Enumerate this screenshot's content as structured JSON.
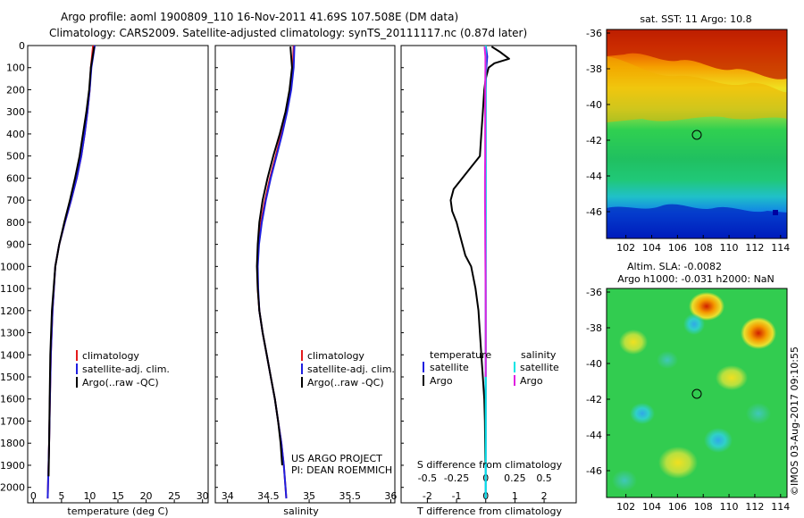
{
  "title": {
    "line1": "Argo profile: aoml 1900809_110 16-Nov-2011 41.69S 107.508E (DM data)",
    "line2": "Climatology: CARS2009. Satellite-adjusted climatology: synTS_20111117.nc (0.87d later)"
  },
  "colors": {
    "climatology": "#e41a1c",
    "satellite": "#1f1fe0",
    "argo": "#000000",
    "sal_satellite": "#00e5e5",
    "sal_argo": "#e020e0"
  },
  "chart_data": [
    {
      "type": "line",
      "panel": "temperature",
      "xlabel": "temperature (deg C)",
      "ylabel": "",
      "xlim": [
        -1,
        31
      ],
      "ylim": [
        2070,
        0
      ],
      "xticks": [
        0,
        5,
        10,
        15,
        20,
        25,
        30
      ],
      "yticks": [
        0,
        100,
        200,
        300,
        400,
        500,
        600,
        700,
        800,
        900,
        1000,
        1100,
        1200,
        1300,
        1400,
        1500,
        1600,
        1700,
        1800,
        1900,
        2000
      ],
      "legend": [
        "climatology",
        "satellite-adj. clim.",
        "Argo(..raw -QC)"
      ],
      "legend_placement": "lower-right",
      "series": [
        {
          "name": "climatology",
          "color": "#e41a1c",
          "depth": [
            0,
            100,
            200,
            300,
            400,
            500,
            600,
            700,
            800,
            900,
            1000,
            1200,
            1400,
            1600,
            1800,
            2000,
            2050
          ],
          "values": [
            10.6,
            10.2,
            10.0,
            9.6,
            9.1,
            8.5,
            7.7,
            6.7,
            5.6,
            4.6,
            3.9,
            3.4,
            3.1,
            2.95,
            2.8,
            2.6,
            2.55
          ]
        },
        {
          "name": "satellite-adj. clim.",
          "color": "#1f1fe0",
          "depth": [
            0,
            100,
            200,
            300,
            400,
            500,
            600,
            700,
            800,
            900,
            1000,
            1200,
            1400,
            1600,
            1800,
            2000,
            2050
          ],
          "values": [
            10.9,
            10.3,
            10.0,
            9.6,
            9.1,
            8.5,
            7.7,
            6.7,
            5.6,
            4.6,
            3.9,
            3.4,
            3.1,
            2.95,
            2.8,
            2.6,
            2.55
          ]
        },
        {
          "name": "Argo(..raw -QC)",
          "color": "#000000",
          "depth": [
            5,
            100,
            200,
            300,
            400,
            500,
            600,
            700,
            800,
            900,
            1000,
            1200,
            1400,
            1600,
            1800,
            1950
          ],
          "values": [
            10.8,
            10.2,
            9.9,
            9.4,
            8.8,
            8.2,
            7.4,
            6.5,
            5.5,
            4.6,
            3.9,
            3.3,
            3.0,
            2.9,
            2.8,
            2.7
          ]
        }
      ]
    },
    {
      "type": "line",
      "panel": "salinity",
      "xlabel": "salinity",
      "ylabel": "",
      "xlim": [
        33.85,
        36.05
      ],
      "ylim": [
        2070,
        0
      ],
      "xticks": [
        34,
        34.5,
        35,
        35.5,
        36
      ],
      "legend": [
        "climatology",
        "satellite-adj. clim.",
        "Argo(..raw -QC)"
      ],
      "legend_placement": "lower-right",
      "annotation": [
        "US ARGO PROJECT",
        "PI: DEAN ROEMMICH"
      ],
      "series": [
        {
          "name": "climatology",
          "color": "#e41a1c",
          "depth": [
            0,
            100,
            200,
            300,
            400,
            500,
            600,
            700,
            800,
            900,
            1000,
            1100,
            1200,
            1300,
            1400,
            1500,
            1600,
            1700,
            1800,
            1900,
            2000,
            2050
          ],
          "values": [
            34.81,
            34.8,
            34.77,
            34.72,
            34.66,
            34.59,
            34.52,
            34.46,
            34.41,
            34.38,
            34.365,
            34.37,
            34.39,
            34.43,
            34.48,
            34.53,
            34.58,
            34.62,
            34.66,
            34.69,
            34.71,
            34.72
          ]
        },
        {
          "name": "satellite-adj. clim.",
          "color": "#1f1fe0",
          "depth": [
            0,
            100,
            200,
            300,
            400,
            500,
            600,
            700,
            800,
            900,
            1000,
            1100,
            1200,
            1300,
            1400,
            1500,
            1600,
            1700,
            1800,
            1900,
            2000,
            2050
          ],
          "values": [
            34.82,
            34.81,
            34.78,
            34.73,
            34.67,
            34.6,
            34.53,
            34.47,
            34.42,
            34.385,
            34.37,
            34.375,
            34.39,
            34.43,
            34.48,
            34.53,
            34.58,
            34.62,
            34.66,
            34.69,
            34.71,
            34.72
          ]
        },
        {
          "name": "Argo(..raw -QC)",
          "color": "#000000",
          "depth": [
            5,
            100,
            200,
            300,
            400,
            500,
            600,
            700,
            800,
            900,
            1000,
            1100,
            1200,
            1300,
            1400,
            1500,
            1600,
            1700,
            1800,
            1900
          ],
          "values": [
            34.77,
            34.79,
            34.76,
            34.71,
            34.64,
            34.56,
            34.49,
            34.43,
            34.39,
            34.37,
            34.36,
            34.37,
            34.39,
            34.43,
            34.48,
            34.53,
            34.58,
            34.62,
            34.65,
            34.67
          ]
        }
      ]
    },
    {
      "type": "line",
      "panel": "difference",
      "xlabel": "T difference from climatology",
      "top_axis_label": "S difference from climatology",
      "ylabel": "",
      "xlim": [
        -2.9,
        3.1
      ],
      "ylim": [
        2070,
        0
      ],
      "xticks": [
        -2,
        -1,
        0,
        1,
        2
      ],
      "top_xticks": [
        "-0.5",
        "-0.25",
        "0",
        "0.25",
        "0.5"
      ],
      "top_xlim": [
        -0.725,
        0.775
      ],
      "legend_titles": [
        "temperature",
        "salinity"
      ],
      "legend": [
        "satellite",
        "Argo",
        "satellite",
        "Argo"
      ],
      "legend_placement": "lower-right",
      "series": [
        {
          "name": "satellite",
          "quantity": "temperature",
          "color": "#1f1fe0",
          "depth": [
            0,
            50,
            100,
            200,
            300,
            400,
            600,
            800,
            1000,
            1500,
            2000,
            2050
          ],
          "values": [
            0.0,
            0.05,
            0.02,
            0.0,
            0.0,
            0.0,
            0.0,
            0.0,
            0.0,
            0.0,
            0.0,
            0.0
          ]
        },
        {
          "name": "Argo",
          "quantity": "temperature",
          "color": "#000000",
          "depth": [
            5,
            30,
            60,
            80,
            100,
            150,
            200,
            300,
            400,
            500,
            550,
            600,
            650,
            700,
            750,
            800,
            850,
            900,
            950,
            1000,
            1100,
            1200,
            1300,
            1400,
            1500,
            1600,
            1700,
            1800,
            1900
          ],
          "values": [
            0.2,
            0.5,
            0.8,
            0.3,
            0.1,
            0.0,
            -0.05,
            -0.1,
            -0.15,
            -0.2,
            -0.5,
            -0.8,
            -1.1,
            -1.2,
            -1.15,
            -1.0,
            -0.9,
            -0.8,
            -0.7,
            -0.5,
            -0.35,
            -0.25,
            -0.2,
            -0.15,
            -0.1,
            -0.05,
            -0.03,
            -0.02,
            -0.01
          ]
        },
        {
          "name": "satellite",
          "quantity": "salinity",
          "color": "#00e5e5",
          "depth": [
            0,
            100,
            200,
            400,
            600,
            800,
            1000,
            1200,
            1400,
            1600,
            1800,
            2000,
            2050
          ],
          "values": [
            0.0,
            0.0,
            0.0,
            0.0,
            0.0,
            0.0,
            0.0,
            0.0,
            0.0,
            0.0,
            0.0,
            0.0,
            0.0
          ]
        },
        {
          "name": "Argo",
          "quantity": "salinity",
          "color": "#e020e0",
          "depth": [
            5,
            50,
            100,
            200,
            300,
            400,
            500,
            600,
            700,
            800,
            900,
            1000,
            1100,
            1200,
            1300,
            1400,
            1500
          ],
          "values": [
            -0.04,
            -0.01,
            -0.01,
            -0.02,
            -0.02,
            -0.02,
            -0.02,
            -0.025,
            -0.025,
            -0.02,
            -0.015,
            -0.01,
            -0.005,
            0.0,
            0.0,
            0.0,
            0.0
          ]
        }
      ]
    },
    {
      "type": "heatmap",
      "panel": "sst_map",
      "title": "sat. SST: 11  Argo: 10.8",
      "xlim": [
        100.5,
        114.5
      ],
      "ylim": [
        -47.5,
        -35.8
      ],
      "xticks": [
        102,
        104,
        106,
        108,
        110,
        112,
        114
      ],
      "yticks": [
        -36,
        -38,
        -40,
        -42,
        -44,
        -46
      ],
      "marker": {
        "lon": 107.5,
        "lat": -41.7
      }
    },
    {
      "type": "heatmap",
      "panel": "sla_map",
      "title": [
        "Altim. SLA: -0.0082",
        "Argo h1000: -0.031 h2000: NaN"
      ],
      "xlim": [
        100.5,
        114.5
      ],
      "ylim": [
        -47.5,
        -35.8
      ],
      "xticks": [
        102,
        104,
        106,
        108,
        110,
        112,
        114
      ],
      "yticks": [
        -36,
        -38,
        -40,
        -42,
        -44,
        -46
      ],
      "marker": {
        "lon": 107.5,
        "lat": -41.7
      }
    }
  ],
  "credit": "©IMOS 03-Aug-2017 09:10:55"
}
